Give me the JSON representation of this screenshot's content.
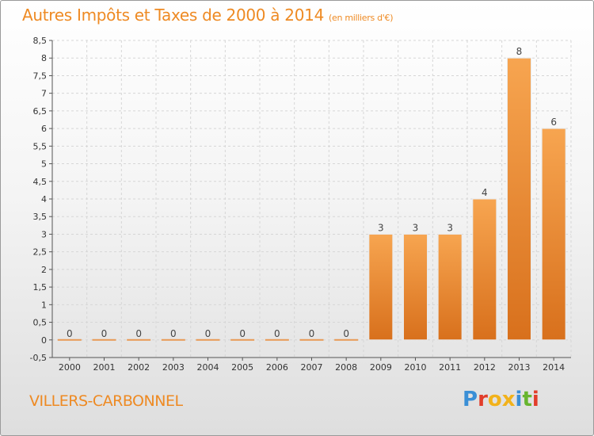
{
  "chart_data": {
    "type": "bar",
    "title": "Autres Impôts et Taxes de 2000 à 2014",
    "subtitle": "(en milliers d'€)",
    "categories": [
      "2000",
      "2001",
      "2002",
      "2003",
      "2004",
      "2005",
      "2006",
      "2007",
      "2008",
      "2009",
      "2010",
      "2011",
      "2012",
      "2013",
      "2014"
    ],
    "values": [
      0,
      0,
      0,
      0,
      0,
      0,
      0,
      0,
      0,
      3,
      3,
      3,
      4,
      8,
      6
    ],
    "data_labels": [
      "0",
      "0",
      "0",
      "0",
      "0",
      "0",
      "0",
      "0",
      "0",
      "3",
      "3",
      "3",
      "4",
      "8",
      "6"
    ],
    "ylim": [
      -0.5,
      8.5
    ],
    "yticks": [
      "-0,5",
      "0",
      "0,5",
      "1",
      "1,5",
      "2",
      "2,5",
      "3",
      "3,5",
      "4",
      "4,5",
      "5",
      "5,5",
      "6",
      "6,5",
      "7",
      "7,5",
      "8",
      "8,5"
    ],
    "xlabel": "",
    "ylabel": "",
    "grid": true,
    "bar_color": "#f0903a"
  },
  "footer": {
    "commune": "VILLERS-CARBONNEL",
    "logo_letters": [
      {
        "ch": "P",
        "color": "#3a8fd6"
      },
      {
        "ch": "r",
        "color": "#e23d2a"
      },
      {
        "ch": "o",
        "color": "#f2b21b"
      },
      {
        "ch": "x",
        "color": "#f2b21b"
      },
      {
        "ch": "i",
        "color": "#3a8fd6"
      },
      {
        "ch": "t",
        "color": "#67b52f"
      },
      {
        "ch": "i",
        "color": "#e23d2a"
      }
    ]
  }
}
